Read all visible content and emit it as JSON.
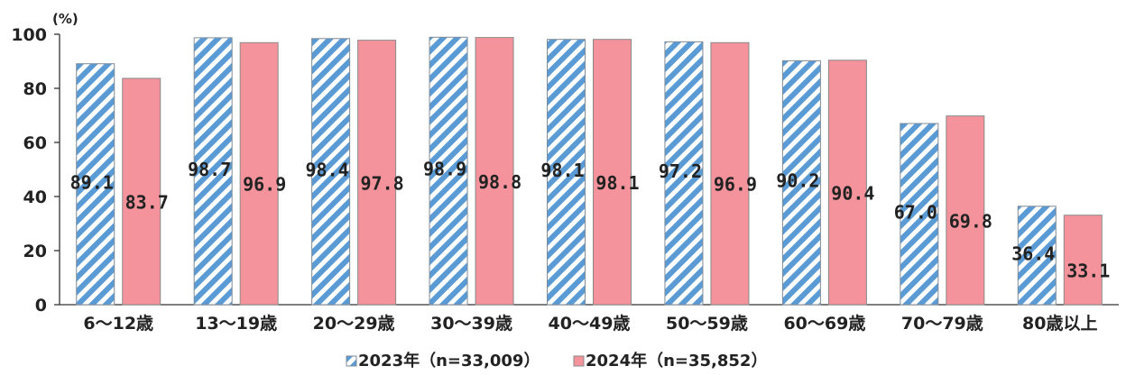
{
  "chart_data": {
    "type": "bar",
    "unit_label": "(%)",
    "categories": [
      "6～12歳",
      "13～19歳",
      "20～29歳",
      "30～39歳",
      "40～49歳",
      "50～59歳",
      "60～69歳",
      "70～79歳",
      "80歳以上"
    ],
    "series": [
      {
        "name": "2023年（n=33,009）",
        "values": [
          89.1,
          98.7,
          98.4,
          98.9,
          98.1,
          97.2,
          90.2,
          67.0,
          36.4
        ],
        "labels": [
          "89.1",
          "98.7",
          "98.4",
          "98.9",
          "98.1",
          "97.2",
          "90.2",
          "67.0",
          "36.4"
        ],
        "color": "#5b9bd5",
        "pattern": "diagonal-stripes"
      },
      {
        "name": "2024年（n=35,852）",
        "values": [
          83.7,
          96.9,
          97.8,
          98.8,
          98.1,
          96.9,
          90.4,
          69.8,
          33.1
        ],
        "labels": [
          "83.7",
          "96.9",
          "97.8",
          "98.8",
          "98.1",
          "96.9",
          "90.4",
          "69.8",
          "33.1"
        ],
        "color": "#f4939b",
        "pattern": "solid"
      }
    ],
    "ylim": [
      0,
      100
    ],
    "yticks": [
      0,
      20,
      40,
      60,
      80,
      100
    ],
    "grid": false,
    "legend": "bottom-center"
  }
}
